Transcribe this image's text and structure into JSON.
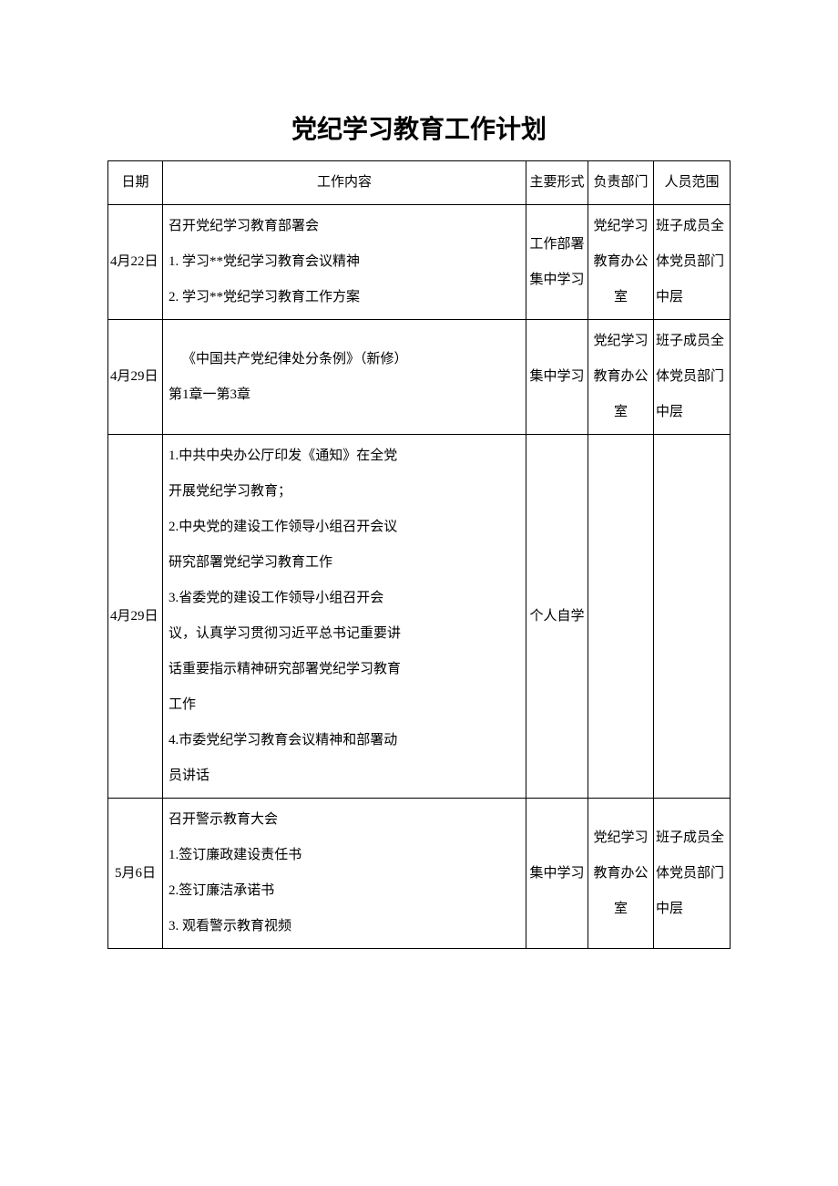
{
  "title": "党纪学习教育工作计划",
  "headers": {
    "date": "日期",
    "content": "工作内容",
    "form": "主要形式",
    "dept": "负责部门",
    "scope": "人员范围"
  },
  "rows": [
    {
      "date": "4月22日",
      "content_lines": [
        "召开党纪学习教育部署会",
        "1. 学习**党纪学习教育会议精神",
        "2. 学习**党纪学习教育工作方案"
      ],
      "content_indent": [
        false,
        false,
        false
      ],
      "form": "工作部署集中学习",
      "dept": "党纪学习教育办公室",
      "scope": "班子成员全体党员部门中层"
    },
    {
      "date": "4月29日",
      "content_lines": [
        "《中国共产党纪律处分条例》（新修）",
        "第1章一第3章"
      ],
      "content_indent": [
        true,
        false
      ],
      "form": "集中学习",
      "dept": "党纪学习教育办公室",
      "scope": "班子成员全体党员部门中层"
    },
    {
      "date": "4月29日",
      "content_lines": [
        "1.中共中央办公厅印发《通知》在全党",
        "开展党纪学习教育；",
        "2.中央党的建设工作领导小组召开会议",
        "研究部署党纪学习教育工作",
        "3.省委党的建设工作领导小组召开会",
        "议，认真学习贯彻习近平总书记重要讲",
        "话重要指示精神研究部署党纪学习教育",
        "工作",
        "4.市委党纪学习教育会议精神和部署动",
        "员讲话"
      ],
      "content_indent": [
        false,
        false,
        false,
        false,
        false,
        false,
        false,
        false,
        false,
        false
      ],
      "form": "个人自学",
      "dept": "",
      "scope": ""
    },
    {
      "date": "5月6日",
      "content_lines": [
        "召开警示教育大会",
        "1.签订廉政建设责任书",
        "2.签订廉洁承诺书",
        "3. 观看警示教育视频"
      ],
      "content_indent": [
        false,
        false,
        false,
        false
      ],
      "form": "集中学习",
      "dept": "党纪学习教育办公室",
      "scope": "班子成员全体党员部门中层"
    }
  ],
  "colors": {
    "text": "#000000",
    "border": "#000000",
    "background": "#ffffff"
  }
}
